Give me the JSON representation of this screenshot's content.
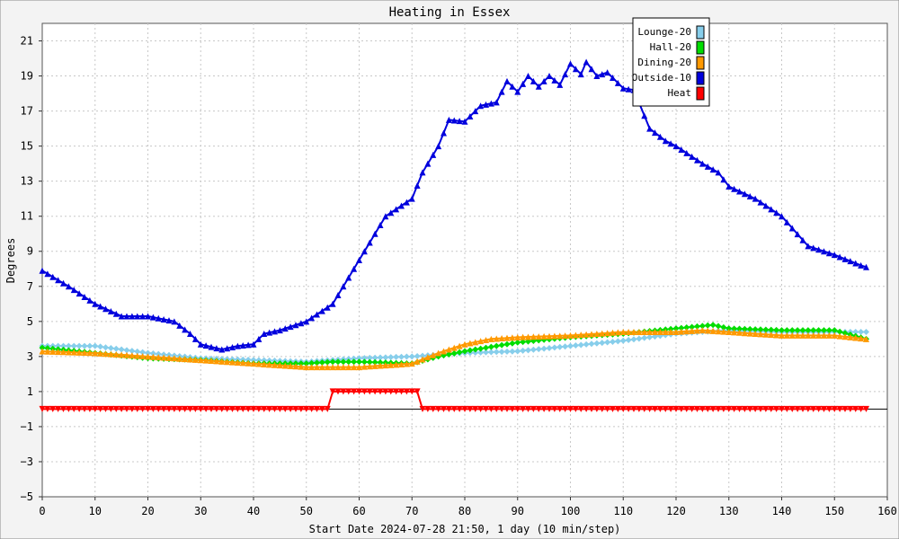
{
  "chart_data": {
    "type": "line",
    "title": "Heating in Essex",
    "xlabel": "Start Date 2024-07-28 21:50, 1 day (10 min/step)",
    "ylabel": "Degrees",
    "xlim": [
      0,
      160
    ],
    "ylim": [
      -5,
      22
    ],
    "x_ticks": [
      0,
      10,
      20,
      30,
      40,
      50,
      60,
      70,
      80,
      90,
      100,
      110,
      120,
      130,
      140,
      150,
      160
    ],
    "y_ticks": [
      -5,
      -3,
      -1,
      1,
      3,
      5,
      7,
      9,
      11,
      13,
      15,
      17,
      19,
      21
    ],
    "x_tick_labels": [
      "0",
      "10",
      "20",
      "30",
      "40",
      "50",
      "60",
      "70",
      "80",
      "90",
      "100",
      "110",
      "120",
      "130",
      "140",
      "150",
      "160"
    ],
    "y_tick_labels": [
      "−5",
      "−3",
      "−1",
      "1",
      "3",
      "5",
      "7",
      "9",
      "11",
      "13",
      "15",
      "17",
      "19",
      "21"
    ],
    "grid": true,
    "legend_position": "top-right",
    "zero_line": true,
    "series": [
      {
        "name": "Lounge-20",
        "color": "#87ceeb",
        "marker": "diamond",
        "points": [
          [
            0,
            3.6
          ],
          [
            10,
            3.6
          ],
          [
            20,
            3.2
          ],
          [
            30,
            2.9
          ],
          [
            40,
            2.8
          ],
          [
            50,
            2.7
          ],
          [
            60,
            2.9
          ],
          [
            70,
            3.0
          ],
          [
            80,
            3.2
          ],
          [
            90,
            3.3
          ],
          [
            100,
            3.6
          ],
          [
            110,
            3.9
          ],
          [
            120,
            4.3
          ],
          [
            130,
            4.5
          ],
          [
            140,
            4.4
          ],
          [
            150,
            4.4
          ],
          [
            156,
            4.4
          ]
        ]
      },
      {
        "name": "Hall-20",
        "color": "#00dd00",
        "marker": "diamond",
        "points": [
          [
            0,
            3.5
          ],
          [
            10,
            3.2
          ],
          [
            20,
            2.9
          ],
          [
            30,
            2.8
          ],
          [
            40,
            2.6
          ],
          [
            50,
            2.6
          ],
          [
            55,
            2.7
          ],
          [
            60,
            2.7
          ],
          [
            70,
            2.6
          ],
          [
            75,
            3.0
          ],
          [
            80,
            3.3
          ],
          [
            90,
            3.8
          ],
          [
            100,
            4.1
          ],
          [
            110,
            4.3
          ],
          [
            120,
            4.6
          ],
          [
            127,
            4.8
          ],
          [
            130,
            4.6
          ],
          [
            140,
            4.5
          ],
          [
            150,
            4.5
          ],
          [
            156,
            4.0
          ]
        ]
      },
      {
        "name": "Dining-20",
        "color": "#ff9900",
        "marker": "triangle",
        "points": [
          [
            0,
            3.3
          ],
          [
            10,
            3.2
          ],
          [
            20,
            3.0
          ],
          [
            30,
            2.8
          ],
          [
            40,
            2.6
          ],
          [
            50,
            2.4
          ],
          [
            55,
            2.4
          ],
          [
            60,
            2.4
          ],
          [
            70,
            2.6
          ],
          [
            75,
            3.2
          ],
          [
            80,
            3.7
          ],
          [
            85,
            4.0
          ],
          [
            90,
            4.1
          ],
          [
            100,
            4.2
          ],
          [
            110,
            4.4
          ],
          [
            120,
            4.4
          ],
          [
            125,
            4.5
          ],
          [
            130,
            4.4
          ],
          [
            140,
            4.2
          ],
          [
            150,
            4.2
          ],
          [
            156,
            4.0
          ]
        ]
      },
      {
        "name": "Outside-10",
        "color": "#0000dd",
        "marker": "triangle",
        "points": [
          [
            0,
            7.9
          ],
          [
            5,
            7.0
          ],
          [
            10,
            6.0
          ],
          [
            15,
            5.3
          ],
          [
            20,
            5.3
          ],
          [
            25,
            5.0
          ],
          [
            28,
            4.3
          ],
          [
            30,
            3.7
          ],
          [
            34,
            3.4
          ],
          [
            37,
            3.6
          ],
          [
            40,
            3.7
          ],
          [
            42,
            4.3
          ],
          [
            45,
            4.5
          ],
          [
            50,
            5.0
          ],
          [
            55,
            6.0
          ],
          [
            60,
            8.5
          ],
          [
            65,
            11.0
          ],
          [
            70,
            12.0
          ],
          [
            72,
            13.5
          ],
          [
            75,
            15.0
          ],
          [
            77,
            16.5
          ],
          [
            80,
            16.4
          ],
          [
            83,
            17.3
          ],
          [
            86,
            17.5
          ],
          [
            88,
            18.7
          ],
          [
            90,
            18.1
          ],
          [
            92,
            19.0
          ],
          [
            94,
            18.4
          ],
          [
            96,
            19.0
          ],
          [
            98,
            18.5
          ],
          [
            100,
            19.7
          ],
          [
            102,
            19.1
          ],
          [
            103,
            19.8
          ],
          [
            105,
            19.0
          ],
          [
            107,
            19.2
          ],
          [
            110,
            18.3
          ],
          [
            112,
            18.2
          ],
          [
            115,
            16.0
          ],
          [
            118,
            15.3
          ],
          [
            120,
            15.0
          ],
          [
            125,
            14.0
          ],
          [
            128,
            13.5
          ],
          [
            130,
            12.7
          ],
          [
            135,
            12.0
          ],
          [
            140,
            11.0
          ],
          [
            145,
            9.3
          ],
          [
            150,
            8.8
          ],
          [
            155,
            8.2
          ],
          [
            156,
            8.1
          ]
        ]
      },
      {
        "name": "Heat",
        "color": "#ff0000",
        "marker": "triangle-down",
        "points": [
          [
            0,
            0
          ],
          [
            54,
            0
          ],
          [
            55,
            1
          ],
          [
            71,
            1
          ],
          [
            72,
            0
          ],
          [
            156,
            0
          ]
        ]
      }
    ]
  }
}
